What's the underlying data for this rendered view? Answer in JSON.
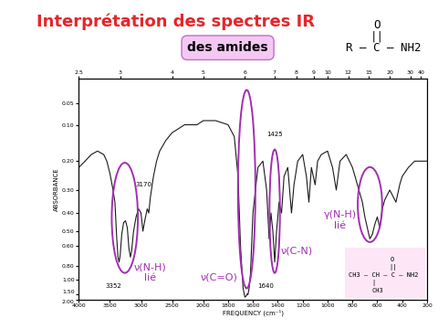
{
  "chart_data": {
    "type": "line",
    "title": "Interprétation des spectres IR",
    "subtitle": "des amides",
    "xlabel": "FREQUENCY (cm⁻¹)",
    "ylabel": "ABSORBANCE",
    "color": "#1a1a1a",
    "grid": false,
    "x": [
      4000,
      3900,
      3800,
      3700,
      3600,
      3550,
      3500,
      3450,
      3420,
      3390,
      3370,
      3352,
      3335,
      3310,
      3280,
      3250,
      3220,
      3195,
      3170,
      3150,
      3120,
      3080,
      3040,
      3000,
      2970,
      2940,
      2900,
      2875,
      2850,
      2800,
      2750,
      2700,
      2600,
      2500,
      2400,
      2300,
      2200,
      2100,
      2000,
      1900,
      1800,
      1750,
      1720,
      1700,
      1680,
      1665,
      1655,
      1645,
      1640,
      1630,
      1620,
      1600,
      1560,
      1520,
      1490,
      1470,
      1455,
      1440,
      1425,
      1410,
      1390,
      1370,
      1350,
      1320,
      1290,
      1270,
      1240,
      1200,
      1170,
      1150,
      1130,
      1100,
      1080,
      1050,
      1000,
      960,
      930,
      900,
      850,
      800,
      760,
      720,
      700,
      680,
      660,
      640,
      620,
      600,
      580,
      560,
      540,
      500,
      450,
      420,
      400,
      350,
      300,
      250,
      200
    ],
    "values": [
      0.22,
      0.2,
      0.18,
      0.17,
      0.18,
      0.2,
      0.24,
      0.3,
      0.35,
      0.55,
      0.7,
      0.75,
      0.68,
      0.52,
      0.45,
      0.44,
      0.48,
      0.62,
      0.7,
      0.64,
      0.5,
      0.42,
      0.38,
      0.4,
      0.5,
      0.44,
      0.38,
      0.4,
      0.33,
      0.25,
      0.2,
      0.17,
      0.14,
      0.12,
      0.11,
      0.1,
      0.1,
      0.1,
      0.09,
      0.09,
      0.1,
      0.13,
      0.25,
      0.6,
      1.2,
      1.7,
      1.6,
      1.45,
      1.5,
      1.2,
      0.9,
      0.4,
      0.22,
      0.2,
      0.3,
      0.55,
      0.4,
      0.5,
      0.75,
      0.5,
      0.35,
      0.4,
      0.25,
      0.22,
      0.4,
      0.28,
      0.2,
      0.18,
      0.25,
      0.35,
      0.22,
      0.28,
      0.2,
      0.18,
      0.17,
      0.22,
      0.3,
      0.2,
      0.18,
      0.22,
      0.28,
      0.35,
      0.42,
      0.48,
      0.55,
      0.52,
      0.46,
      0.42,
      0.48,
      0.38,
      0.34,
      0.3,
      0.35,
      0.28,
      0.25,
      0.22,
      0.2,
      0.2,
      0.2
    ],
    "xlim": [
      4000,
      200
    ],
    "xticks": [
      4000,
      3500,
      3000,
      2500,
      2000,
      1800,
      1600,
      1400,
      1200,
      1000,
      800,
      600,
      400,
      200
    ],
    "x2lim": [
      2.5,
      50
    ],
    "x2ticks": [
      2.5,
      3,
      4,
      5,
      6,
      7,
      8,
      9,
      10,
      12,
      15,
      20,
      30,
      40
    ],
    "ylim": [
      2.0,
      0.0
    ],
    "yticks": [
      0.05,
      {
        "value": 0.1,
        "label": "0.10"
      },
      {
        "value": 0.2,
        "label": "0.20"
      },
      {
        "value": 0.3,
        "label": "0.30"
      },
      {
        "value": 0.4,
        "label": "0.40"
      },
      {
        "value": 0.5,
        "label": "0.50"
      },
      {
        "value": 0.6,
        "label": "0.60"
      },
      {
        "value": 0.8,
        "label": "0.80"
      },
      {
        "value": 1.0,
        "label": "1.00"
      },
      {
        "value": 1.5,
        "label": "1.50"
      },
      {
        "value": 2.0,
        "label": "2.00"
      }
    ],
    "annotations": [
      {
        "text": "3352"
      },
      {
        "text": "3170"
      },
      {
        "text": "ν(N-H)\nlié"
      },
      {
        "text": "ν(C=O)"
      },
      {
        "text": "1640"
      },
      {
        "text": "1425"
      },
      {
        "text": "ν(C-N)"
      },
      {
        "text": "γ(N-H)\nlié"
      }
    ]
  },
  "structure": {
    "oxygen": "O",
    "double_bond": "||",
    "formula": "R — C — NH2"
  },
  "molecule": {
    "oxygen": "O",
    "double_bond": "||",
    "formula": "CH3 – CH – C – NH2",
    "branch_bond": "|",
    "branch": "CH3"
  }
}
